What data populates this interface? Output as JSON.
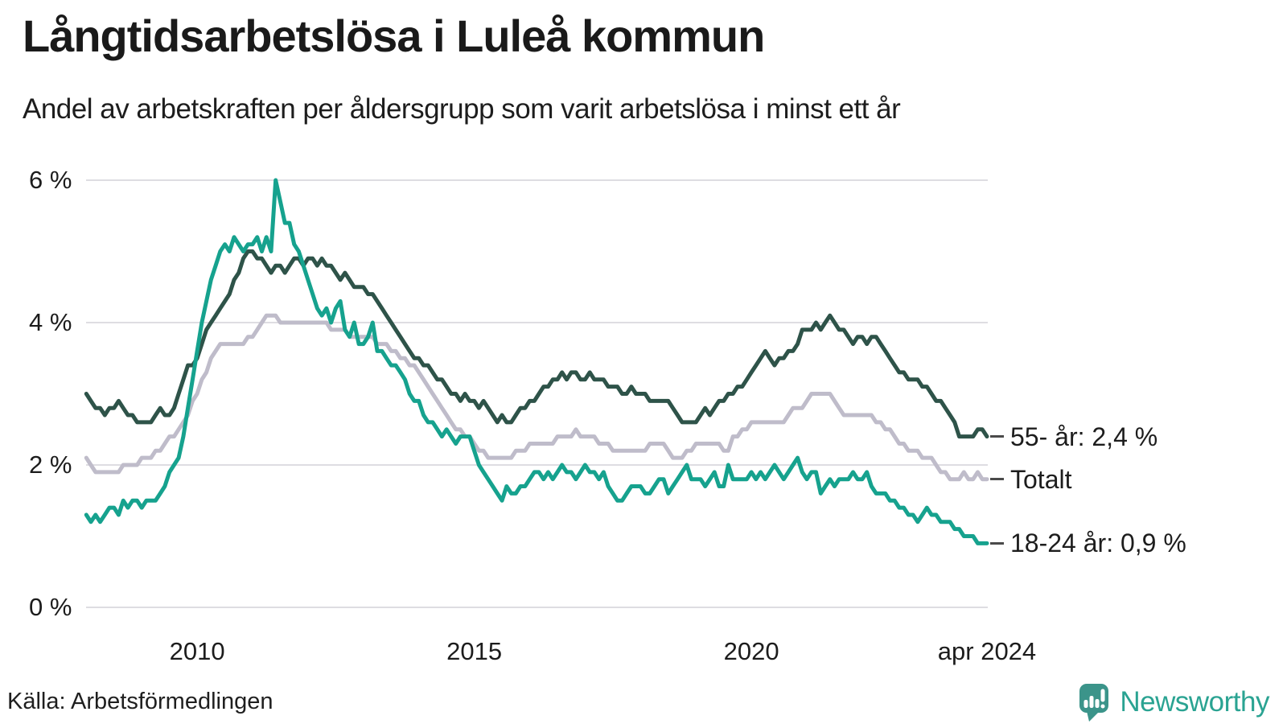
{
  "header": {
    "title": "Långtidsarbetslösa i Luleå kommun",
    "subtitle": "Andel av arbetskraften per åldersgrupp som varit arbetslösa i minst ett år"
  },
  "footer": {
    "source": "Källa: Arbetsförmedlingen",
    "brand": "Newsworthy"
  },
  "colors": {
    "series_55": "#2e5349",
    "series_total": "#bfbcca",
    "series_18_24": "#16a28e",
    "gridline": "#dedde2",
    "end_dash": "#4a4a4a",
    "text": "#1c1c1c",
    "brand_text": "#2aa392",
    "brand_icon": "#3b948a"
  },
  "chart_data": {
    "type": "line",
    "title": "Långtidsarbetslösa i Luleå kommun",
    "subtitle": "Andel av arbetskraften per åldersgrupp som varit arbetslösa i minst ett år",
    "x_unit": "month",
    "x_start": "2008-01",
    "x_end": "2024-04",
    "x_tick_labels": [
      "2010",
      "2015",
      "2020",
      "apr 2024"
    ],
    "x_tick_month_index": [
      24,
      84,
      144,
      195
    ],
    "y_tick_labels": [
      "0 %",
      "2 %",
      "4 %",
      "6 %"
    ],
    "y_tick_values": [
      0,
      2,
      4,
      6
    ],
    "ylim": [
      0,
      6.3
    ],
    "grid": "horizontal",
    "legend_position": "end-of-line-labels",
    "series": [
      {
        "name": "55- år",
        "end_label": "55- år: 2,4 %",
        "last_value": 2.4,
        "color": "#2e5349",
        "values": [
          3.0,
          2.9,
          2.8,
          2.8,
          2.7,
          2.8,
          2.8,
          2.9,
          2.8,
          2.7,
          2.7,
          2.6,
          2.6,
          2.6,
          2.6,
          2.7,
          2.8,
          2.7,
          2.7,
          2.8,
          3.0,
          3.2,
          3.4,
          3.4,
          3.5,
          3.7,
          3.9,
          4.0,
          4.1,
          4.2,
          4.3,
          4.4,
          4.6,
          4.7,
          4.9,
          5.0,
          5.0,
          4.9,
          4.9,
          4.8,
          4.7,
          4.8,
          4.8,
          4.7,
          4.8,
          4.9,
          4.9,
          4.8,
          4.9,
          4.9,
          4.8,
          4.9,
          4.8,
          4.8,
          4.7,
          4.6,
          4.7,
          4.6,
          4.5,
          4.5,
          4.5,
          4.4,
          4.4,
          4.3,
          4.2,
          4.1,
          4.0,
          3.9,
          3.8,
          3.7,
          3.6,
          3.5,
          3.5,
          3.4,
          3.4,
          3.3,
          3.2,
          3.2,
          3.1,
          3.0,
          3.0,
          2.9,
          3.0,
          2.9,
          2.9,
          2.8,
          2.9,
          2.8,
          2.7,
          2.6,
          2.7,
          2.6,
          2.6,
          2.7,
          2.8,
          2.8,
          2.9,
          2.9,
          3.0,
          3.1,
          3.1,
          3.2,
          3.2,
          3.3,
          3.2,
          3.3,
          3.3,
          3.2,
          3.2,
          3.3,
          3.2,
          3.2,
          3.2,
          3.1,
          3.1,
          3.1,
          3.0,
          3.0,
          3.1,
          3.0,
          3.0,
          3.0,
          2.9,
          2.9,
          2.9,
          2.9,
          2.9,
          2.8,
          2.7,
          2.6,
          2.6,
          2.6,
          2.6,
          2.7,
          2.8,
          2.7,
          2.8,
          2.9,
          2.9,
          3.0,
          3.0,
          3.1,
          3.1,
          3.2,
          3.3,
          3.4,
          3.5,
          3.6,
          3.5,
          3.4,
          3.5,
          3.5,
          3.6,
          3.6,
          3.7,
          3.9,
          3.9,
          3.9,
          4.0,
          3.9,
          4.0,
          4.1,
          4.0,
          3.9,
          3.9,
          3.8,
          3.7,
          3.8,
          3.8,
          3.7,
          3.8,
          3.8,
          3.7,
          3.6,
          3.5,
          3.4,
          3.3,
          3.3,
          3.2,
          3.2,
          3.2,
          3.1,
          3.1,
          3.0,
          2.9,
          2.9,
          2.8,
          2.7,
          2.6,
          2.4,
          2.4,
          2.4,
          2.4,
          2.5,
          2.5,
          2.4
        ]
      },
      {
        "name": "Totalt",
        "end_label": "Totalt",
        "last_value": 1.8,
        "color": "#bfbcca",
        "values": [
          2.1,
          2.0,
          1.9,
          1.9,
          1.9,
          1.9,
          1.9,
          1.9,
          2.0,
          2.0,
          2.0,
          2.0,
          2.1,
          2.1,
          2.1,
          2.2,
          2.2,
          2.3,
          2.4,
          2.4,
          2.5,
          2.6,
          2.7,
          2.9,
          3.0,
          3.2,
          3.3,
          3.5,
          3.6,
          3.7,
          3.7,
          3.7,
          3.7,
          3.7,
          3.7,
          3.8,
          3.8,
          3.9,
          4.0,
          4.1,
          4.1,
          4.1,
          4.0,
          4.0,
          4.0,
          4.0,
          4.0,
          4.0,
          4.0,
          4.0,
          4.0,
          4.0,
          4.0,
          3.9,
          3.9,
          3.9,
          3.9,
          3.8,
          3.8,
          3.8,
          3.8,
          3.8,
          3.8,
          3.7,
          3.7,
          3.7,
          3.6,
          3.6,
          3.5,
          3.5,
          3.4,
          3.4,
          3.3,
          3.2,
          3.1,
          3.0,
          2.9,
          2.8,
          2.7,
          2.6,
          2.5,
          2.5,
          2.4,
          2.4,
          2.3,
          2.2,
          2.2,
          2.1,
          2.1,
          2.1,
          2.1,
          2.1,
          2.1,
          2.2,
          2.2,
          2.2,
          2.3,
          2.3,
          2.3,
          2.3,
          2.3,
          2.3,
          2.4,
          2.4,
          2.4,
          2.4,
          2.5,
          2.4,
          2.4,
          2.4,
          2.4,
          2.3,
          2.3,
          2.3,
          2.2,
          2.2,
          2.2,
          2.2,
          2.2,
          2.2,
          2.2,
          2.2,
          2.3,
          2.3,
          2.3,
          2.3,
          2.2,
          2.1,
          2.1,
          2.1,
          2.2,
          2.2,
          2.3,
          2.3,
          2.3,
          2.3,
          2.3,
          2.3,
          2.2,
          2.2,
          2.4,
          2.4,
          2.5,
          2.5,
          2.6,
          2.6,
          2.6,
          2.6,
          2.6,
          2.6,
          2.6,
          2.6,
          2.7,
          2.8,
          2.8,
          2.8,
          2.9,
          3.0,
          3.0,
          3.0,
          3.0,
          3.0,
          2.9,
          2.8,
          2.7,
          2.7,
          2.7,
          2.7,
          2.7,
          2.7,
          2.7,
          2.6,
          2.6,
          2.5,
          2.5,
          2.4,
          2.3,
          2.3,
          2.2,
          2.2,
          2.2,
          2.1,
          2.1,
          2.1,
          2.0,
          1.9,
          1.9,
          1.8,
          1.8,
          1.8,
          1.9,
          1.8,
          1.8,
          1.9,
          1.8,
          1.8
        ]
      },
      {
        "name": "18-24 år",
        "end_label": "18-24 år: 0,9 %",
        "last_value": 0.9,
        "color": "#16a28e",
        "values": [
          1.3,
          1.2,
          1.3,
          1.2,
          1.3,
          1.4,
          1.4,
          1.3,
          1.5,
          1.4,
          1.5,
          1.5,
          1.4,
          1.5,
          1.5,
          1.5,
          1.6,
          1.7,
          1.9,
          2.0,
          2.1,
          2.4,
          2.8,
          3.2,
          3.6,
          4.0,
          4.3,
          4.6,
          4.8,
          5.0,
          5.1,
          5.0,
          5.2,
          5.1,
          5.0,
          5.1,
          5.1,
          5.2,
          5.0,
          5.2,
          5.0,
          6.0,
          5.7,
          5.4,
          5.4,
          5.1,
          5.0,
          4.8,
          4.6,
          4.4,
          4.2,
          4.1,
          4.2,
          4.0,
          4.2,
          4.3,
          3.9,
          3.8,
          4.0,
          3.7,
          3.7,
          3.8,
          4.0,
          3.6,
          3.6,
          3.5,
          3.4,
          3.4,
          3.3,
          3.2,
          3.0,
          2.9,
          2.9,
          2.7,
          2.6,
          2.6,
          2.5,
          2.4,
          2.5,
          2.4,
          2.3,
          2.4,
          2.4,
          2.4,
          2.2,
          2.0,
          1.9,
          1.8,
          1.7,
          1.6,
          1.5,
          1.7,
          1.6,
          1.6,
          1.7,
          1.7,
          1.8,
          1.9,
          1.9,
          1.8,
          1.9,
          1.8,
          1.9,
          2.0,
          1.9,
          1.9,
          1.8,
          1.9,
          2.0,
          1.9,
          1.9,
          1.8,
          1.9,
          1.7,
          1.6,
          1.5,
          1.5,
          1.6,
          1.7,
          1.7,
          1.7,
          1.6,
          1.6,
          1.7,
          1.8,
          1.8,
          1.6,
          1.7,
          1.8,
          1.9,
          2.0,
          1.8,
          1.8,
          1.8,
          1.7,
          1.8,
          1.9,
          1.7,
          1.7,
          2.0,
          1.8,
          1.8,
          1.8,
          1.8,
          1.9,
          1.8,
          1.9,
          1.8,
          1.9,
          2.0,
          1.9,
          1.8,
          1.9,
          2.0,
          2.1,
          1.9,
          1.8,
          1.9,
          1.9,
          1.6,
          1.7,
          1.8,
          1.7,
          1.8,
          1.8,
          1.8,
          1.9,
          1.8,
          1.8,
          1.9,
          1.7,
          1.6,
          1.6,
          1.6,
          1.5,
          1.5,
          1.4,
          1.4,
          1.3,
          1.3,
          1.2,
          1.3,
          1.4,
          1.3,
          1.3,
          1.2,
          1.2,
          1.2,
          1.1,
          1.1,
          1.0,
          1.0,
          1.0,
          0.9,
          0.9,
          0.9
        ]
      }
    ]
  }
}
